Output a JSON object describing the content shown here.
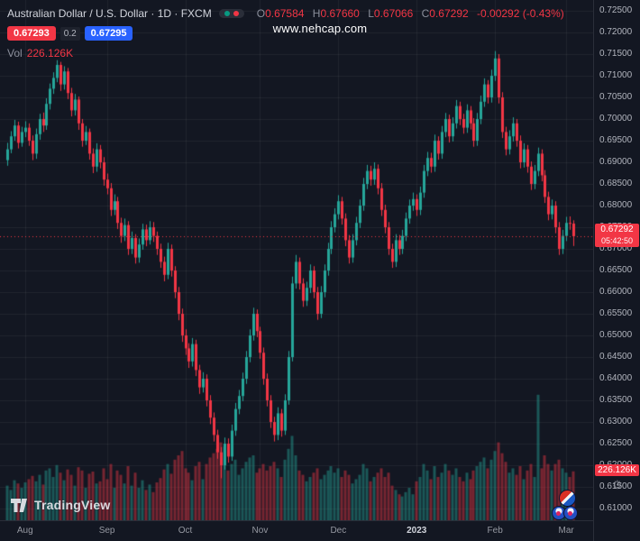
{
  "header": {
    "symbol_title": "Australian Dollar / U.S. Dollar · 1D · FXCM",
    "ohlc": {
      "o_label": "O",
      "o": "0.67584",
      "h_label": "H",
      "h": "0.67660",
      "l_label": "L",
      "l": "0.67066",
      "c_label": "C",
      "c": "0.67292",
      "change": "-0.00292 (-0.43%)"
    },
    "sell_price": "0.67293",
    "spread": "0.2",
    "buy_price": "0.67295",
    "vol_label": "Vol",
    "vol_value": "226.126K"
  },
  "watermark": {
    "text": "www.nehcap.com"
  },
  "price_axis": {
    "last_price_badge": {
      "price": "0.67292",
      "countdown": "05:42:50"
    },
    "volume_badge": "226.126K",
    "gear_icon": "⚙"
  },
  "footer": {
    "logo_text": "TradingView"
  },
  "colors": {
    "background": "#131722",
    "up": "#26a69a",
    "down": "#f23645",
    "grid": "rgba(255,255,255,0.06)",
    "badge_red": "#f23645",
    "badge_blue": "#2962ff",
    "axis_text": "#b2b5be"
  },
  "chart_data": {
    "type": "candlestick+volume",
    "title": "Australian Dollar / U.S. Dollar, 1D, FXCM",
    "last_price": 0.67292,
    "countdown": "05:42:50",
    "last_volume_label": "226.126K",
    "price_view_range": [
      0.6073,
      0.7275
    ],
    "y_ticks": [
      "0.72500",
      "0.72000",
      "0.71500",
      "0.71000",
      "0.70500",
      "0.70000",
      "0.69500",
      "0.69000",
      "0.68500",
      "0.68000",
      "0.67500",
      "0.67000",
      "0.66500",
      "0.66000",
      "0.65500",
      "0.65000",
      "0.64500",
      "0.64000",
      "0.63500",
      "0.63000",
      "0.62500",
      "0.62000",
      "0.61500",
      "0.61000"
    ],
    "x_ticks": [
      {
        "label": "Aug",
        "index": 5
      },
      {
        "label": "Sep",
        "index": 28
      },
      {
        "label": "Oct",
        "index": 50
      },
      {
        "label": "Nov",
        "index": 71
      },
      {
        "label": "Dec",
        "index": 93
      },
      {
        "label": "2023",
        "index": 115,
        "major": true
      },
      {
        "label": "Feb",
        "index": 137
      },
      {
        "label": "Mar",
        "index": 157
      }
    ],
    "candles_format": [
      "open",
      "high",
      "low",
      "close",
      "volume_thousands"
    ],
    "candles": [
      [
        0.6905,
        0.6945,
        0.6892,
        0.693,
        160
      ],
      [
        0.693,
        0.6972,
        0.6921,
        0.696,
        140
      ],
      [
        0.696,
        0.6998,
        0.695,
        0.6985,
        185
      ],
      [
        0.6985,
        0.6994,
        0.6932,
        0.6945,
        170
      ],
      [
        0.6945,
        0.6982,
        0.6936,
        0.697,
        150
      ],
      [
        0.697,
        0.6995,
        0.6958,
        0.698,
        175
      ],
      [
        0.698,
        0.699,
        0.6938,
        0.695,
        190
      ],
      [
        0.695,
        0.6962,
        0.6905,
        0.692,
        205
      ],
      [
        0.692,
        0.6978,
        0.6908,
        0.6965,
        180
      ],
      [
        0.6965,
        0.7012,
        0.6952,
        0.7,
        210
      ],
      [
        0.7,
        0.7015,
        0.697,
        0.6985,
        165
      ],
      [
        0.6985,
        0.7048,
        0.6975,
        0.7035,
        230
      ],
      [
        0.7035,
        0.7082,
        0.7022,
        0.707,
        240
      ],
      [
        0.707,
        0.7108,
        0.7058,
        0.7095,
        200
      ],
      [
        0.7095,
        0.7136,
        0.7085,
        0.7125,
        255
      ],
      [
        0.7125,
        0.7132,
        0.7065,
        0.708,
        220
      ],
      [
        0.708,
        0.7122,
        0.7068,
        0.711,
        185
      ],
      [
        0.711,
        0.7118,
        0.7046,
        0.706,
        235
      ],
      [
        0.706,
        0.7072,
        0.7006,
        0.702,
        210
      ],
      [
        0.702,
        0.7058,
        0.7008,
        0.7045,
        160
      ],
      [
        0.7045,
        0.7052,
        0.6975,
        0.699,
        245
      ],
      [
        0.699,
        0.7,
        0.6936,
        0.695,
        230
      ],
      [
        0.695,
        0.6984,
        0.694,
        0.697,
        150
      ],
      [
        0.697,
        0.6978,
        0.6906,
        0.692,
        215
      ],
      [
        0.692,
        0.6932,
        0.6875,
        0.689,
        225
      ],
      [
        0.689,
        0.6944,
        0.6878,
        0.693,
        170
      ],
      [
        0.693,
        0.694,
        0.6886,
        0.69,
        180
      ],
      [
        0.69,
        0.6912,
        0.6846,
        0.686,
        240
      ],
      [
        0.686,
        0.6874,
        0.6826,
        0.684,
        190
      ],
      [
        0.684,
        0.6852,
        0.6776,
        0.679,
        260
      ],
      [
        0.679,
        0.6826,
        0.6778,
        0.681,
        150
      ],
      [
        0.681,
        0.682,
        0.6746,
        0.676,
        230
      ],
      [
        0.676,
        0.6772,
        0.6714,
        0.673,
        210
      ],
      [
        0.673,
        0.677,
        0.6718,
        0.6755,
        170
      ],
      [
        0.6755,
        0.6764,
        0.6686,
        0.67,
        250
      ],
      [
        0.67,
        0.674,
        0.6688,
        0.6725,
        160
      ],
      [
        0.6725,
        0.6734,
        0.6666,
        0.668,
        220
      ],
      [
        0.668,
        0.6724,
        0.6668,
        0.671,
        150
      ],
      [
        0.671,
        0.6758,
        0.6698,
        0.6745,
        185
      ],
      [
        0.6745,
        0.6756,
        0.6706,
        0.672,
        140
      ],
      [
        0.672,
        0.6764,
        0.671,
        0.675,
        165
      ],
      [
        0.675,
        0.6762,
        0.6716,
        0.673,
        130
      ],
      [
        0.673,
        0.674,
        0.6686,
        0.67,
        175
      ],
      [
        0.67,
        0.6712,
        0.6656,
        0.667,
        195
      ],
      [
        0.667,
        0.6682,
        0.6625,
        0.664,
        235
      ],
      [
        0.664,
        0.6714,
        0.663,
        0.67,
        260
      ],
      [
        0.67,
        0.671,
        0.6636,
        0.665,
        215
      ],
      [
        0.665,
        0.666,
        0.6586,
        0.66,
        280
      ],
      [
        0.66,
        0.6612,
        0.6535,
        0.655,
        300
      ],
      [
        0.655,
        0.6562,
        0.6485,
        0.65,
        320
      ],
      [
        0.65,
        0.6514,
        0.6455,
        0.647,
        240
      ],
      [
        0.647,
        0.6482,
        0.6425,
        0.644,
        220
      ],
      [
        0.644,
        0.6494,
        0.6428,
        0.648,
        185
      ],
      [
        0.648,
        0.649,
        0.6406,
        0.642,
        250
      ],
      [
        0.642,
        0.6432,
        0.6365,
        0.638,
        270
      ],
      [
        0.638,
        0.6415,
        0.6368,
        0.64,
        190
      ],
      [
        0.64,
        0.641,
        0.6336,
        0.635,
        260
      ],
      [
        0.635,
        0.6362,
        0.6295,
        0.631,
        290
      ],
      [
        0.631,
        0.6322,
        0.6255,
        0.627,
        310
      ],
      [
        0.627,
        0.6282,
        0.6215,
        0.623,
        330
      ],
      [
        0.623,
        0.6242,
        0.617,
        0.62,
        360
      ],
      [
        0.62,
        0.6264,
        0.619,
        0.625,
        340
      ],
      [
        0.625,
        0.6262,
        0.6206,
        0.622,
        230
      ],
      [
        0.622,
        0.6294,
        0.621,
        0.628,
        260
      ],
      [
        0.628,
        0.6344,
        0.6268,
        0.633,
        280
      ],
      [
        0.633,
        0.6374,
        0.6318,
        0.636,
        210
      ],
      [
        0.636,
        0.6414,
        0.6348,
        0.64,
        240
      ],
      [
        0.64,
        0.6464,
        0.6388,
        0.645,
        270
      ],
      [
        0.645,
        0.6514,
        0.6438,
        0.65,
        290
      ],
      [
        0.65,
        0.6564,
        0.6488,
        0.655,
        300
      ],
      [
        0.655,
        0.656,
        0.6496,
        0.651,
        220
      ],
      [
        0.651,
        0.652,
        0.6446,
        0.646,
        240
      ],
      [
        0.646,
        0.6472,
        0.6386,
        0.64,
        260
      ],
      [
        0.64,
        0.6412,
        0.6336,
        0.635,
        230
      ],
      [
        0.635,
        0.6362,
        0.6286,
        0.63,
        250
      ],
      [
        0.63,
        0.6312,
        0.6255,
        0.627,
        270
      ],
      [
        0.627,
        0.6334,
        0.6258,
        0.632,
        240
      ],
      [
        0.632,
        0.633,
        0.6266,
        0.628,
        200
      ],
      [
        0.628,
        0.6364,
        0.627,
        0.635,
        280
      ],
      [
        0.635,
        0.6464,
        0.634,
        0.645,
        330
      ],
      [
        0.645,
        0.6636,
        0.644,
        0.662,
        390
      ],
      [
        0.662,
        0.6686,
        0.6608,
        0.667,
        300
      ],
      [
        0.667,
        0.668,
        0.6606,
        0.662,
        230
      ],
      [
        0.662,
        0.6632,
        0.6566,
        0.658,
        210
      ],
      [
        0.658,
        0.6624,
        0.6568,
        0.661,
        180
      ],
      [
        0.661,
        0.6664,
        0.6598,
        0.665,
        200
      ],
      [
        0.665,
        0.666,
        0.6586,
        0.66,
        220
      ],
      [
        0.66,
        0.6612,
        0.6536,
        0.655,
        240
      ],
      [
        0.655,
        0.6614,
        0.654,
        0.66,
        190
      ],
      [
        0.66,
        0.6664,
        0.6588,
        0.665,
        210
      ],
      [
        0.665,
        0.6714,
        0.6638,
        0.67,
        230
      ],
      [
        0.67,
        0.6764,
        0.6688,
        0.675,
        250
      ],
      [
        0.675,
        0.6794,
        0.6738,
        0.678,
        220
      ],
      [
        0.678,
        0.6824,
        0.6768,
        0.681,
        240
      ],
      [
        0.681,
        0.682,
        0.6756,
        0.677,
        200
      ],
      [
        0.677,
        0.6782,
        0.6706,
        0.672,
        230
      ],
      [
        0.672,
        0.6732,
        0.6666,
        0.668,
        210
      ],
      [
        0.668,
        0.6734,
        0.6668,
        0.672,
        170
      ],
      [
        0.672,
        0.6774,
        0.6708,
        0.676,
        190
      ],
      [
        0.676,
        0.6814,
        0.6748,
        0.68,
        210
      ],
      [
        0.68,
        0.6864,
        0.6788,
        0.685,
        260
      ],
      [
        0.685,
        0.6894,
        0.6838,
        0.688,
        240
      ],
      [
        0.688,
        0.6892,
        0.6846,
        0.686,
        180
      ],
      [
        0.686,
        0.69,
        0.6848,
        0.6885,
        200
      ],
      [
        0.6885,
        0.6895,
        0.6826,
        0.684,
        220
      ],
      [
        0.684,
        0.6852,
        0.6776,
        0.679,
        240
      ],
      [
        0.679,
        0.6802,
        0.6736,
        0.675,
        200
      ],
      [
        0.675,
        0.6762,
        0.6686,
        0.67,
        220
      ],
      [
        0.67,
        0.6712,
        0.6656,
        0.667,
        160
      ],
      [
        0.667,
        0.6734,
        0.6658,
        0.672,
        140
      ],
      [
        0.672,
        0.6732,
        0.6686,
        0.67,
        120
      ],
      [
        0.67,
        0.6744,
        0.6688,
        0.673,
        110
      ],
      [
        0.673,
        0.6784,
        0.6718,
        0.677,
        130
      ],
      [
        0.677,
        0.6814,
        0.6758,
        0.68,
        150
      ],
      [
        0.68,
        0.683,
        0.6788,
        0.6815,
        120
      ],
      [
        0.6815,
        0.6826,
        0.6776,
        0.679,
        180
      ],
      [
        0.679,
        0.6844,
        0.6778,
        0.683,
        200
      ],
      [
        0.683,
        0.6894,
        0.6818,
        0.688,
        260
      ],
      [
        0.688,
        0.6924,
        0.6868,
        0.691,
        230
      ],
      [
        0.691,
        0.6922,
        0.6876,
        0.689,
        190
      ],
      [
        0.689,
        0.6964,
        0.6878,
        0.695,
        250
      ],
      [
        0.695,
        0.696,
        0.6906,
        0.692,
        200
      ],
      [
        0.692,
        0.6984,
        0.6908,
        0.697,
        220
      ],
      [
        0.697,
        0.7014,
        0.6958,
        0.7,
        260
      ],
      [
        0.7,
        0.701,
        0.6946,
        0.696,
        230
      ],
      [
        0.696,
        0.7004,
        0.6948,
        0.699,
        210
      ],
      [
        0.699,
        0.7044,
        0.6978,
        0.703,
        240
      ],
      [
        0.703,
        0.704,
        0.6986,
        0.7,
        200
      ],
      [
        0.7,
        0.7012,
        0.6966,
        0.698,
        180
      ],
      [
        0.698,
        0.7034,
        0.6968,
        0.702,
        220
      ],
      [
        0.702,
        0.703,
        0.6976,
        0.699,
        190
      ],
      [
        0.699,
        0.7002,
        0.6936,
        0.695,
        230
      ],
      [
        0.695,
        0.7014,
        0.6938,
        0.7,
        250
      ],
      [
        0.7,
        0.7054,
        0.6988,
        0.704,
        270
      ],
      [
        0.704,
        0.7094,
        0.7028,
        0.708,
        290
      ],
      [
        0.708,
        0.709,
        0.7036,
        0.705,
        240
      ],
      [
        0.705,
        0.7114,
        0.7038,
        0.71,
        280
      ],
      [
        0.71,
        0.7157,
        0.7088,
        0.714,
        320
      ],
      [
        0.714,
        0.715,
        0.7036,
        0.705,
        360
      ],
      [
        0.705,
        0.7062,
        0.6956,
        0.697,
        310
      ],
      [
        0.697,
        0.6982,
        0.6916,
        0.693,
        270
      ],
      [
        0.693,
        0.6974,
        0.6918,
        0.696,
        220
      ],
      [
        0.696,
        0.7004,
        0.6948,
        0.699,
        240
      ],
      [
        0.699,
        0.7,
        0.6936,
        0.695,
        210
      ],
      [
        0.695,
        0.6962,
        0.6886,
        0.69,
        250
      ],
      [
        0.69,
        0.6944,
        0.6888,
        0.693,
        190
      ],
      [
        0.693,
        0.694,
        0.6876,
        0.689,
        230
      ],
      [
        0.689,
        0.6902,
        0.6836,
        0.685,
        260
      ],
      [
        0.685,
        0.6894,
        0.6838,
        0.688,
        200
      ],
      [
        0.688,
        0.6934,
        0.6868,
        0.692,
        580
      ],
      [
        0.692,
        0.693,
        0.6856,
        0.687,
        240
      ],
      [
        0.687,
        0.6882,
        0.6806,
        0.682,
        300
      ],
      [
        0.682,
        0.6832,
        0.6766,
        0.678,
        260
      ],
      [
        0.678,
        0.6814,
        0.6768,
        0.68,
        230
      ],
      [
        0.68,
        0.681,
        0.6736,
        0.675,
        260
      ],
      [
        0.675,
        0.6762,
        0.6686,
        0.67,
        280
      ],
      [
        0.67,
        0.6744,
        0.6688,
        0.673,
        240
      ],
      [
        0.673,
        0.6774,
        0.6718,
        0.676,
        220
      ],
      [
        0.676,
        0.6775,
        0.6744,
        0.67584,
        200
      ],
      [
        0.67584,
        0.6766,
        0.67066,
        0.67292,
        226.126
      ]
    ]
  }
}
